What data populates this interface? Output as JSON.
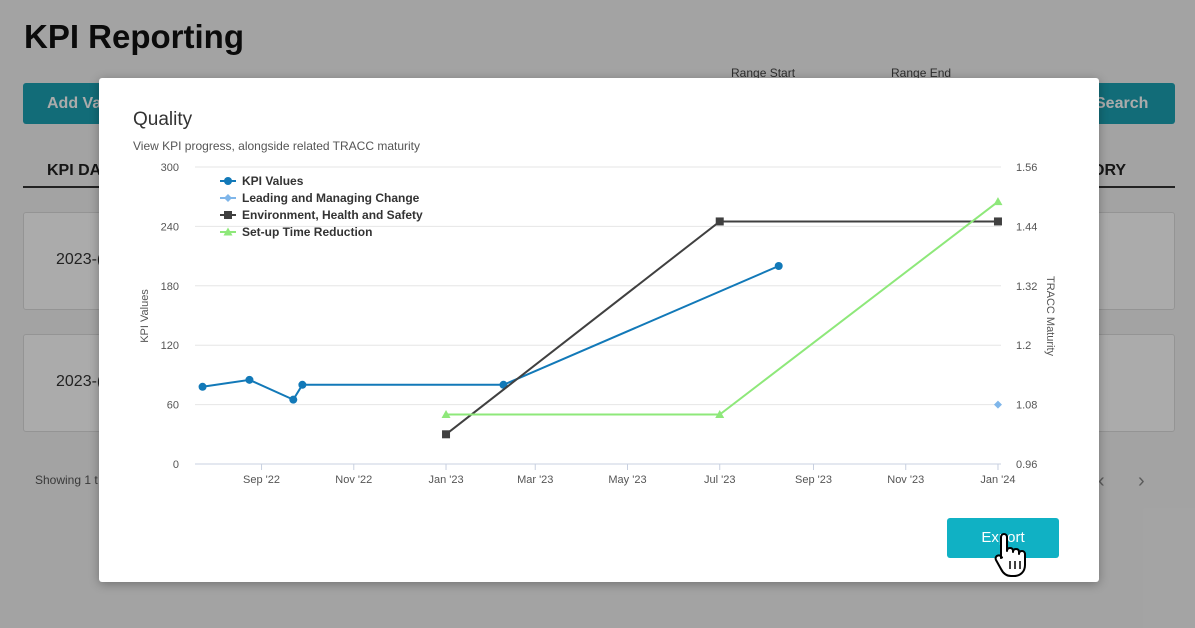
{
  "page": {
    "title": "KPI Reporting",
    "add_button": "Add Va",
    "range_start_label": "Range Start",
    "range_end_label": "Range End",
    "search_button": "Search",
    "col_kpi_date": "KPI DA",
    "col_history": "ORY",
    "rows": [
      {
        "date": "2023-("
      },
      {
        "date": "2023-("
      }
    ],
    "showing_text": "Showing 1 t",
    "pager_prev": "‹",
    "pager_next": "›"
  },
  "modal": {
    "title": "Quality",
    "subtitle": "View KPI progress, alongside related TRACC maturity",
    "export_button": "Export"
  },
  "chart_data": {
    "type": "line",
    "ylabel": "KPI Values",
    "y2label": "TRACC Maturity",
    "ylim": [
      0,
      300
    ],
    "y2lim": [
      0.96,
      1.56
    ],
    "yticks": [
      "0",
      "60",
      "120",
      "180",
      "240",
      "300"
    ],
    "y2ticks": [
      "0.96",
      "1.08",
      "1.2",
      "1.32",
      "1.44",
      "1.56"
    ],
    "xlim": [
      "2022-07-19",
      "2024-01-03"
    ],
    "xticks": [
      {
        "date": "2022-09-01",
        "label": "Sep '22"
      },
      {
        "date": "2022-11-01",
        "label": "Nov '22"
      },
      {
        "date": "2023-01-01",
        "label": "Jan '23"
      },
      {
        "date": "2023-03-01",
        "label": "Mar '23"
      },
      {
        "date": "2023-05-01",
        "label": "May '23"
      },
      {
        "date": "2023-07-01",
        "label": "Jul '23"
      },
      {
        "date": "2023-09-01",
        "label": "Sep '23"
      },
      {
        "date": "2023-11-01",
        "label": "Nov '23"
      },
      {
        "date": "2024-01-01",
        "label": "Jan '24"
      }
    ],
    "grid": true,
    "legend_position": "top-left",
    "series": [
      {
        "name": "KPI Values",
        "axis": "left",
        "marker": "circle",
        "color": "#1279b8",
        "points": [
          [
            "2022-07-24",
            78
          ],
          [
            "2022-08-24",
            85
          ],
          [
            "2022-09-22",
            65
          ],
          [
            "2022-09-28",
            80
          ],
          [
            "2023-02-08",
            80
          ],
          [
            "2023-08-09",
            200
          ]
        ]
      },
      {
        "name": "Leading and Managing Change",
        "axis": "right",
        "marker": "diamond",
        "color": "#7fb6ea",
        "points": [
          [
            "2024-01-01",
            1.08
          ]
        ]
      },
      {
        "name": "Environment, Health and Safety",
        "axis": "right",
        "marker": "square",
        "color": "#404040",
        "points": [
          [
            "2023-01-01",
            1.02
          ],
          [
            "2023-07-01",
            1.45
          ],
          [
            "2024-01-01",
            1.45
          ]
        ]
      },
      {
        "name": "Set-up Time Reduction",
        "axis": "right",
        "marker": "triangle",
        "color": "#8ee87a",
        "points": [
          [
            "2023-01-01",
            1.06
          ],
          [
            "2023-07-01",
            1.06
          ],
          [
            "2024-01-01",
            1.49
          ]
        ]
      }
    ]
  }
}
